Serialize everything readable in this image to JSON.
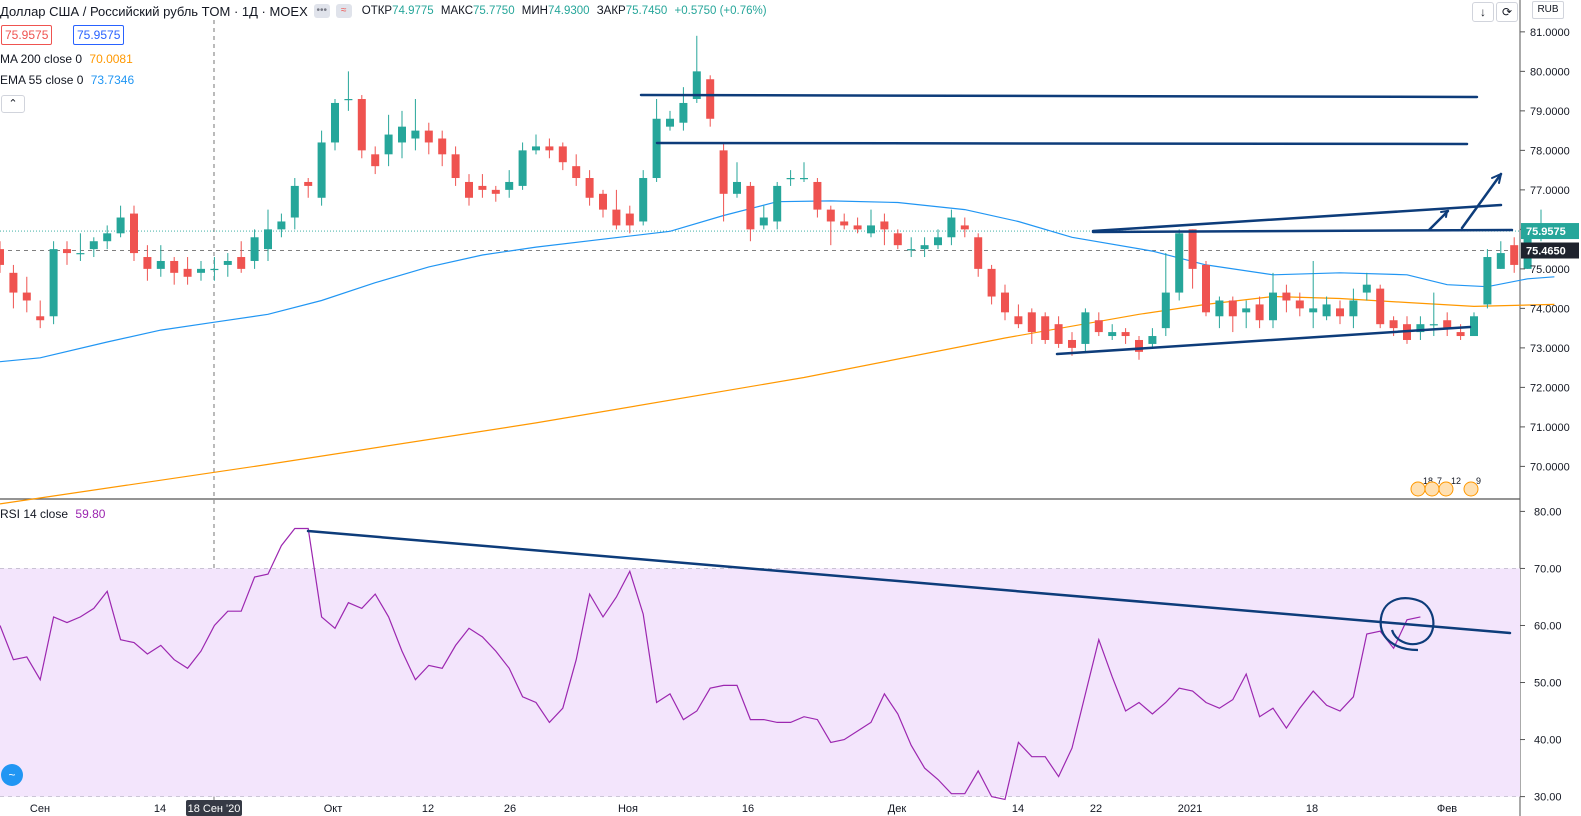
{
  "header": {
    "symbol": "Доллар США / Российский рубль TOM · 1Д · MOEX",
    "chip_dots": "•••",
    "chip_wave": "≈",
    "o_label": "ОТКР",
    "o": "74.9775",
    "h_label": "МАКС",
    "h": "75.7750",
    "l_label": "МИН",
    "l": "74.9300",
    "c_label": "ЗАКР",
    "c": "75.7450",
    "chg": "+0.5750 (+0.76%)"
  },
  "price_boxes": {
    "box1": "75.9575",
    "box2": "75.9575"
  },
  "ma200": {
    "label": "MA 200 close 0",
    "value": "70.0081",
    "color": "#ff9800"
  },
  "ema55": {
    "label": "EMA 55 close 0",
    "value": "73.7346",
    "color": "#2196f3"
  },
  "rsi": {
    "label": "RSI 14 close",
    "value": "59.80",
    "color": "#9c27b0"
  },
  "currency": "RUB",
  "toolbar": {
    "collapse": "⌃",
    "arrow": "↓",
    "refresh": "⟳"
  },
  "price_axis": {
    "ticks": [
      "81.0000",
      "80.0000",
      "79.0000",
      "78.0000",
      "77.0000",
      "76.0000",
      "75.0000",
      "74.0000",
      "73.0000",
      "72.0000",
      "71.0000",
      "70.0000"
    ],
    "current_price": "75.9575",
    "ref_price": "75.4650"
  },
  "rsi_axis": {
    "ticks": [
      "80.00",
      "70.00",
      "60.00",
      "50.00",
      "40.00",
      "30.00"
    ]
  },
  "time_axis": {
    "labels": [
      "Сен",
      "14",
      "Окт",
      "12",
      "26",
      "Ноя",
      "16",
      "Дек",
      "14",
      "22",
      "2021",
      "18",
      "Фев"
    ],
    "crosshair_date": "18 Сен '20"
  },
  "events": [
    "18",
    "7",
    "12",
    "9"
  ],
  "colors": {
    "up": "#26a69a",
    "down": "#ef5350",
    "drawing": "#0d3c7a",
    "rsi_band": "#f3e5fc"
  },
  "chart_data": {
    "type": "candlestick",
    "y_range": [
      69.2,
      81.3
    ],
    "rsi_range": [
      28,
      82
    ],
    "candles": [
      [
        75.5,
        75.1,
        75.7,
        74.9
      ],
      [
        74.9,
        74.4,
        75.1,
        74.0
      ],
      [
        74.4,
        74.2,
        74.8,
        73.9
      ],
      [
        73.8,
        73.7,
        74.2,
        73.5
      ],
      [
        73.8,
        75.5,
        75.7,
        73.6
      ],
      [
        75.5,
        75.4,
        75.7,
        75.1
      ],
      [
        75.4,
        75.4,
        75.9,
        75.2
      ],
      [
        75.5,
        75.7,
        75.8,
        75.3
      ],
      [
        75.7,
        75.9,
        76.1,
        75.5
      ],
      [
        75.9,
        76.3,
        76.6,
        75.8
      ],
      [
        76.4,
        75.4,
        76.6,
        75.2
      ],
      [
        75.3,
        75.0,
        75.6,
        74.7
      ],
      [
        75.0,
        75.2,
        75.6,
        74.8
      ],
      [
        75.2,
        74.9,
        75.3,
        74.6
      ],
      [
        75.0,
        74.8,
        75.3,
        74.6
      ],
      [
        74.9,
        75.0,
        75.2,
        74.7
      ],
      [
        75.0,
        75.0,
        75.3,
        74.7
      ],
      [
        75.1,
        75.2,
        75.4,
        74.8
      ],
      [
        75.3,
        75.0,
        75.7,
        74.9
      ],
      [
        75.2,
        75.8,
        76.0,
        75.0
      ],
      [
        75.5,
        76.0,
        76.5,
        75.2
      ],
      [
        76.0,
        76.2,
        76.4,
        75.8
      ],
      [
        76.3,
        77.1,
        77.3,
        76.0
      ],
      [
        77.2,
        77.1,
        77.3,
        76.8
      ],
      [
        76.8,
        78.2,
        78.5,
        76.6
      ],
      [
        78.2,
        79.2,
        79.3,
        78.0
      ],
      [
        79.3,
        79.3,
        80.0,
        79.0
      ],
      [
        79.3,
        78.0,
        79.4,
        77.8
      ],
      [
        77.9,
        77.6,
        78.1,
        77.4
      ],
      [
        77.9,
        78.4,
        78.9,
        77.6
      ],
      [
        78.2,
        78.6,
        79.0,
        77.8
      ],
      [
        78.3,
        78.5,
        79.3,
        78.0
      ],
      [
        78.5,
        78.2,
        78.7,
        77.9
      ],
      [
        78.3,
        77.9,
        78.5,
        77.6
      ],
      [
        77.9,
        77.3,
        78.1,
        77.1
      ],
      [
        77.2,
        76.8,
        77.4,
        76.6
      ],
      [
        77.1,
        77.0,
        77.4,
        76.8
      ],
      [
        77.0,
        76.9,
        77.1,
        76.7
      ],
      [
        77.0,
        77.2,
        77.5,
        76.8
      ],
      [
        77.1,
        78.0,
        78.2,
        77.0
      ],
      [
        78.0,
        78.1,
        78.4,
        77.9
      ],
      [
        78.1,
        78.0,
        78.3,
        77.8
      ],
      [
        78.1,
        77.7,
        78.2,
        77.5
      ],
      [
        77.6,
        77.3,
        77.9,
        77.1
      ],
      [
        77.3,
        76.8,
        77.5,
        76.6
      ],
      [
        76.9,
        76.5,
        77.0,
        76.3
      ],
      [
        76.5,
        76.1,
        77.0,
        76.0
      ],
      [
        76.4,
        76.1,
        76.6,
        75.9
      ],
      [
        76.2,
        77.3,
        77.5,
        76.1
      ],
      [
        77.3,
        78.8,
        79.3,
        77.2
      ],
      [
        78.6,
        78.8,
        79.0,
        78.5
      ],
      [
        78.7,
        79.2,
        79.6,
        78.5
      ],
      [
        79.3,
        80.0,
        80.9,
        79.2
      ],
      [
        79.8,
        78.8,
        79.9,
        78.6
      ],
      [
        78.0,
        76.9,
        78.2,
        76.2
      ],
      [
        76.9,
        77.2,
        77.7,
        76.8
      ],
      [
        77.1,
        76.0,
        77.2,
        75.7
      ],
      [
        76.1,
        76.3,
        76.6,
        76.0
      ],
      [
        76.2,
        77.1,
        77.2,
        76.0
      ],
      [
        77.3,
        77.3,
        77.5,
        77.1
      ],
      [
        77.3,
        77.3,
        77.7,
        77.2
      ],
      [
        77.2,
        76.5,
        77.3,
        76.3
      ],
      [
        76.5,
        76.2,
        76.6,
        75.6
      ],
      [
        76.2,
        76.1,
        76.4,
        76.0
      ],
      [
        76.1,
        76.0,
        76.3,
        75.9
      ],
      [
        75.9,
        76.1,
        76.5,
        75.8
      ],
      [
        76.2,
        76.0,
        76.4,
        75.6
      ],
      [
        75.9,
        75.6,
        76.0,
        75.5
      ],
      [
        75.5,
        75.5,
        75.8,
        75.3
      ],
      [
        75.5,
        75.6,
        75.8,
        75.3
      ],
      [
        75.6,
        75.8,
        76.0,
        75.5
      ],
      [
        75.8,
        76.3,
        76.5,
        75.6
      ],
      [
        76.1,
        76.0,
        76.3,
        75.8
      ],
      [
        75.8,
        75.0,
        75.9,
        74.8
      ],
      [
        75.0,
        74.3,
        75.1,
        74.1
      ],
      [
        74.4,
        73.9,
        74.6,
        73.7
      ],
      [
        73.8,
        73.6,
        74.1,
        73.5
      ],
      [
        73.9,
        73.4,
        74.0,
        73.1
      ],
      [
        73.8,
        73.2,
        73.9,
        73.1
      ],
      [
        73.6,
        73.1,
        73.8,
        73.0
      ],
      [
        73.2,
        73.0,
        73.4,
        72.8
      ],
      [
        73.1,
        73.9,
        74.0,
        72.9
      ],
      [
        73.7,
        73.4,
        73.9,
        73.3
      ],
      [
        73.3,
        73.4,
        73.6,
        73.2
      ],
      [
        73.4,
        73.3,
        73.5,
        73.1
      ],
      [
        73.2,
        72.9,
        73.3,
        72.7
      ],
      [
        73.1,
        73.3,
        73.5,
        73.0
      ],
      [
        73.5,
        74.4,
        75.4,
        73.3
      ],
      [
        74.4,
        75.9,
        76.0,
        74.2
      ],
      [
        76.0,
        75.0,
        76.0,
        74.5
      ],
      [
        75.1,
        73.9,
        75.2,
        73.8
      ],
      [
        73.8,
        74.2,
        74.3,
        73.5
      ],
      [
        74.2,
        73.8,
        74.3,
        73.4
      ],
      [
        73.9,
        74.0,
        74.2,
        73.5
      ],
      [
        74.1,
        73.7,
        74.3,
        73.5
      ],
      [
        73.7,
        74.4,
        74.9,
        73.5
      ],
      [
        74.4,
        74.2,
        74.6,
        73.9
      ],
      [
        74.2,
        74.0,
        74.4,
        73.8
      ],
      [
        73.9,
        74.0,
        75.2,
        73.5
      ],
      [
        73.8,
        74.1,
        74.3,
        73.7
      ],
      [
        74.0,
        73.8,
        74.2,
        73.6
      ],
      [
        73.8,
        74.2,
        74.5,
        73.5
      ],
      [
        74.4,
        74.6,
        74.9,
        74.2
      ],
      [
        74.5,
        73.6,
        74.6,
        73.5
      ],
      [
        73.7,
        73.5,
        73.8,
        73.3
      ],
      [
        73.6,
        73.2,
        73.8,
        73.1
      ],
      [
        73.4,
        73.6,
        73.8,
        73.2
      ],
      [
        73.6,
        73.6,
        74.4,
        73.3
      ],
      [
        73.7,
        73.5,
        73.9,
        73.3
      ],
      [
        73.4,
        73.3,
        73.6,
        73.2
      ],
      [
        73.3,
        73.8,
        73.9,
        73.3
      ],
      [
        74.1,
        75.3,
        75.5,
        74.0
      ],
      [
        75.0,
        75.4,
        75.7,
        75.0
      ],
      [
        75.6,
        75.1,
        75.8,
        74.9
      ],
      [
        75.0,
        75.8,
        75.9,
        75.0
      ],
      [
        75.8,
        76.0,
        76.5,
        75.7
      ]
    ],
    "ema55": [
      [
        0,
        72.65
      ],
      [
        3,
        72.75
      ],
      [
        8,
        73.15
      ],
      [
        12,
        73.45
      ],
      [
        16,
        73.65
      ],
      [
        20,
        73.85
      ],
      [
        24,
        74.2
      ],
      [
        28,
        74.65
      ],
      [
        32,
        75.05
      ],
      [
        36,
        75.35
      ],
      [
        40,
        75.55
      ],
      [
        45,
        75.75
      ],
      [
        50,
        75.95
      ],
      [
        54,
        76.35
      ],
      [
        58,
        76.7
      ],
      [
        62,
        76.72
      ],
      [
        67,
        76.68
      ],
      [
        72,
        76.5
      ],
      [
        76,
        76.2
      ],
      [
        80,
        75.8
      ],
      [
        86,
        75.45
      ],
      [
        90,
        75.1
      ],
      [
        95,
        74.85
      ],
      [
        100,
        74.9
      ],
      [
        105,
        74.85
      ],
      [
        108,
        74.6
      ],
      [
        111,
        74.55
      ],
      [
        114,
        74.75
      ],
      [
        116,
        74.8
      ]
    ],
    "ma200": [
      [
        0,
        69.05
      ],
      [
        20,
        70.05
      ],
      [
        40,
        71.1
      ],
      [
        60,
        72.25
      ],
      [
        75,
        73.25
      ],
      [
        85,
        73.85
      ],
      [
        90,
        74.1
      ],
      [
        95,
        74.3
      ],
      [
        100,
        74.25
      ],
      [
        105,
        74.15
      ],
      [
        110,
        74.05
      ],
      [
        116,
        74.1
      ]
    ],
    "rsi": [
      [
        0,
        60
      ],
      [
        1,
        54
      ],
      [
        2,
        54.5
      ],
      [
        3,
        50.5
      ],
      [
        4,
        61.5
      ],
      [
        5,
        60.5
      ],
      [
        6,
        61.5
      ],
      [
        7,
        63
      ],
      [
        8,
        66
      ],
      [
        9,
        57.5
      ],
      [
        10,
        57
      ],
      [
        11,
        55
      ],
      [
        12,
        56.5
      ],
      [
        13,
        54
      ],
      [
        14,
        52.5
      ],
      [
        15,
        55.5
      ],
      [
        16,
        60
      ],
      [
        17,
        62.5
      ],
      [
        18,
        62.5
      ],
      [
        19,
        68.5
      ],
      [
        20,
        69
      ],
      [
        21,
        74
      ],
      [
        22,
        77
      ],
      [
        23,
        77
      ],
      [
        24,
        61.5
      ],
      [
        25,
        59.5
      ],
      [
        26,
        64
      ],
      [
        27,
        63
      ],
      [
        28,
        65.5
      ],
      [
        29,
        61.5
      ],
      [
        30,
        55.5
      ],
      [
        31,
        50.5
      ],
      [
        32,
        53
      ],
      [
        33,
        52.5
      ],
      [
        34,
        56.5
      ],
      [
        35,
        59.5
      ],
      [
        36,
        58
      ],
      [
        37,
        55.5
      ],
      [
        38,
        52.5
      ],
      [
        39,
        47.5
      ],
      [
        40,
        46.5
      ],
      [
        41,
        43
      ],
      [
        42,
        45.5
      ],
      [
        43,
        54
      ],
      [
        44,
        65.5
      ],
      [
        45,
        61.5
      ],
      [
        46,
        65
      ],
      [
        47,
        69.5
      ],
      [
        48,
        62
      ],
      [
        49,
        46.5
      ],
      [
        50,
        48
      ],
      [
        51,
        43.5
      ],
      [
        52,
        45
      ],
      [
        53,
        49
      ],
      [
        54,
        49.5
      ],
      [
        55,
        49.5
      ],
      [
        56,
        43.5
      ],
      [
        57,
        43.5
      ],
      [
        58,
        43
      ],
      [
        59,
        43
      ],
      [
        60,
        44
      ],
      [
        61,
        43.5
      ],
      [
        62,
        39.5
      ],
      [
        63,
        40
      ],
      [
        64,
        41.5
      ],
      [
        65,
        43
      ],
      [
        66,
        48
      ],
      [
        67,
        44.5
      ],
      [
        68,
        39
      ],
      [
        69,
        35
      ],
      [
        70,
        33
      ],
      [
        71,
        30.5
      ],
      [
        72,
        30.5
      ],
      [
        73,
        34.5
      ],
      [
        74,
        30
      ],
      [
        75,
        29.5
      ],
      [
        76,
        39.5
      ],
      [
        77,
        37
      ],
      [
        78,
        37
      ],
      [
        79,
        33.5
      ],
      [
        80,
        38.5
      ],
      [
        81,
        48
      ],
      [
        82,
        57.5
      ],
      [
        83,
        51
      ],
      [
        84,
        45
      ],
      [
        85,
        46.5
      ],
      [
        86,
        44.5
      ],
      [
        87,
        46.5
      ],
      [
        88,
        49
      ],
      [
        89,
        48.5
      ],
      [
        90,
        46.5
      ],
      [
        91,
        45.5
      ],
      [
        92,
        47
      ],
      [
        93,
        51.5
      ],
      [
        94,
        44
      ],
      [
        95,
        45.5
      ],
      [
        96,
        42
      ],
      [
        97,
        45.5
      ],
      [
        98,
        48.5
      ],
      [
        99,
        46
      ],
      [
        100,
        45
      ],
      [
        101,
        47.5
      ],
      [
        102,
        58.5
      ],
      [
        103,
        59
      ],
      [
        104,
        56
      ],
      [
        105,
        61
      ],
      [
        106,
        61.5
      ]
    ]
  }
}
